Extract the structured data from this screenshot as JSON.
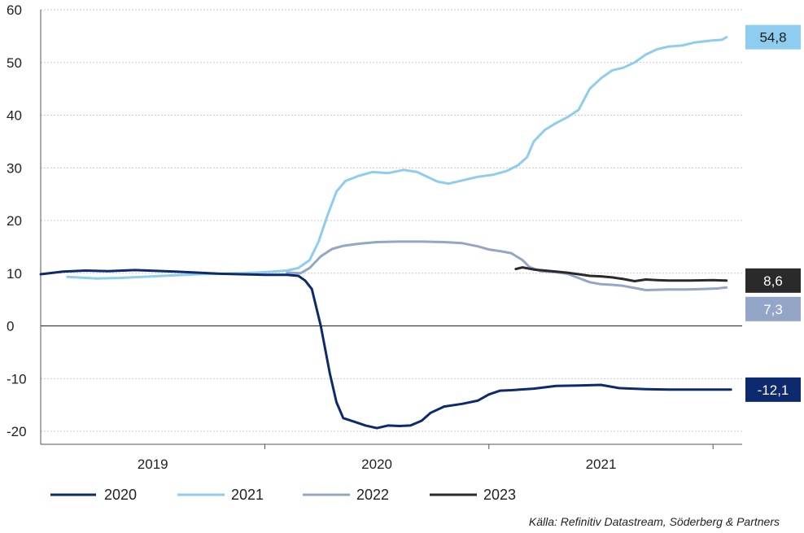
{
  "chart_data": {
    "type": "line",
    "title": "",
    "xlabel": "",
    "ylabel": "",
    "ylim": [
      -20,
      60
    ],
    "yticks": [
      60,
      50,
      40,
      30,
      20,
      10,
      0,
      -10,
      -20
    ],
    "ytick_labels": [
      "60",
      "50",
      "40",
      "30",
      "20",
      "10",
      "0",
      "-10",
      "-20"
    ],
    "xlim": [
      2019.0,
      2022.13
    ],
    "x_categories": [
      "2019",
      "2020",
      "2021"
    ],
    "grid": true,
    "legend_position": "bottom",
    "series": [
      {
        "name": "2020",
        "color": "#0d2a6e",
        "end_label": "-12,1",
        "points": [
          [
            2019.0,
            9.8
          ],
          [
            2019.1,
            10.3
          ],
          [
            2019.2,
            10.5
          ],
          [
            2019.3,
            10.4
          ],
          [
            2019.42,
            10.6
          ],
          [
            2019.6,
            10.3
          ],
          [
            2019.8,
            9.9
          ],
          [
            2020.0,
            9.7
          ],
          [
            2020.1,
            9.7
          ],
          [
            2020.15,
            9.5
          ],
          [
            2020.18,
            8.6
          ],
          [
            2020.21,
            7.0
          ],
          [
            2020.25,
            0.0
          ],
          [
            2020.29,
            -9.0
          ],
          [
            2020.32,
            -14.5
          ],
          [
            2020.35,
            -17.5
          ],
          [
            2020.4,
            -18.2
          ],
          [
            2020.45,
            -18.9
          ],
          [
            2020.5,
            -19.4
          ],
          [
            2020.55,
            -18.9
          ],
          [
            2020.6,
            -19.0
          ],
          [
            2020.65,
            -18.9
          ],
          [
            2020.7,
            -18.0
          ],
          [
            2020.74,
            -16.5
          ],
          [
            2020.8,
            -15.3
          ],
          [
            2020.88,
            -14.8
          ],
          [
            2020.95,
            -14.2
          ],
          [
            2021.0,
            -13.0
          ],
          [
            2021.05,
            -12.3
          ],
          [
            2021.1,
            -12.2
          ],
          [
            2021.2,
            -11.9
          ],
          [
            2021.3,
            -11.4
          ],
          [
            2021.4,
            -11.3
          ],
          [
            2021.5,
            -11.2
          ],
          [
            2021.58,
            -11.8
          ],
          [
            2021.7,
            -12.0
          ],
          [
            2021.8,
            -12.1
          ],
          [
            2021.9,
            -12.1
          ],
          [
            2022.08,
            -12.1
          ]
        ]
      },
      {
        "name": "2021",
        "color": "#8ecdf0",
        "end_label": "54,8",
        "points": [
          [
            2019.12,
            9.3
          ],
          [
            2019.25,
            9.0
          ],
          [
            2019.35,
            9.1
          ],
          [
            2019.5,
            9.4
          ],
          [
            2019.7,
            9.8
          ],
          [
            2019.9,
            10.0
          ],
          [
            2020.0,
            10.2
          ],
          [
            2020.1,
            10.5
          ],
          [
            2020.15,
            11.0
          ],
          [
            2020.2,
            12.5
          ],
          [
            2020.24,
            16.0
          ],
          [
            2020.28,
            21.0
          ],
          [
            2020.32,
            25.5
          ],
          [
            2020.36,
            27.5
          ],
          [
            2020.42,
            28.5
          ],
          [
            2020.48,
            29.2
          ],
          [
            2020.55,
            29.0
          ],
          [
            2020.62,
            29.6
          ],
          [
            2020.68,
            29.2
          ],
          [
            2020.72,
            28.4
          ],
          [
            2020.77,
            27.4
          ],
          [
            2020.82,
            27.0
          ],
          [
            2020.88,
            27.6
          ],
          [
            2020.95,
            28.3
          ],
          [
            2021.02,
            28.7
          ],
          [
            2021.08,
            29.4
          ],
          [
            2021.13,
            30.5
          ],
          [
            2021.17,
            32.0
          ],
          [
            2021.2,
            35.0
          ],
          [
            2021.25,
            37.2
          ],
          [
            2021.3,
            38.5
          ],
          [
            2021.35,
            39.6
          ],
          [
            2021.4,
            41.0
          ],
          [
            2021.45,
            45.0
          ],
          [
            2021.5,
            47.0
          ],
          [
            2021.55,
            48.5
          ],
          [
            2021.6,
            49.0
          ],
          [
            2021.65,
            50.0
          ],
          [
            2021.7,
            51.5
          ],
          [
            2021.75,
            52.5
          ],
          [
            2021.8,
            53.0
          ],
          [
            2021.86,
            53.2
          ],
          [
            2021.92,
            53.8
          ],
          [
            2022.0,
            54.2
          ],
          [
            2022.04,
            54.3
          ],
          [
            2022.06,
            54.8
          ]
        ]
      },
      {
        "name": "2022",
        "color": "#94a6c8",
        "end_label": "7,3",
        "points": [
          [
            2020.1,
            10.1
          ],
          [
            2020.16,
            10.0
          ],
          [
            2020.2,
            11.0
          ],
          [
            2020.25,
            13.2
          ],
          [
            2020.3,
            14.6
          ],
          [
            2020.35,
            15.2
          ],
          [
            2020.42,
            15.6
          ],
          [
            2020.5,
            15.9
          ],
          [
            2020.6,
            16.0
          ],
          [
            2020.7,
            16.0
          ],
          [
            2020.8,
            15.9
          ],
          [
            2020.88,
            15.7
          ],
          [
            2020.95,
            15.1
          ],
          [
            2021.0,
            14.5
          ],
          [
            2021.05,
            14.2
          ],
          [
            2021.1,
            13.8
          ],
          [
            2021.15,
            12.5
          ],
          [
            2021.18,
            11.2
          ],
          [
            2021.23,
            10.4
          ],
          [
            2021.3,
            10.2
          ],
          [
            2021.35,
            9.9
          ],
          [
            2021.4,
            9.1
          ],
          [
            2021.45,
            8.3
          ],
          [
            2021.5,
            7.9
          ],
          [
            2021.55,
            7.8
          ],
          [
            2021.6,
            7.6
          ],
          [
            2021.65,
            7.2
          ],
          [
            2021.7,
            6.8
          ],
          [
            2021.8,
            6.9
          ],
          [
            2021.88,
            6.9
          ],
          [
            2021.95,
            7.0
          ],
          [
            2022.02,
            7.1
          ],
          [
            2022.06,
            7.3
          ]
        ]
      },
      {
        "name": "2023",
        "color": "#2a2a2a",
        "end_label": "8,6",
        "points": [
          [
            2021.12,
            10.8
          ],
          [
            2021.15,
            11.1
          ],
          [
            2021.2,
            10.7
          ],
          [
            2021.25,
            10.5
          ],
          [
            2021.3,
            10.3
          ],
          [
            2021.35,
            10.1
          ],
          [
            2021.4,
            9.8
          ],
          [
            2021.45,
            9.5
          ],
          [
            2021.5,
            9.4
          ],
          [
            2021.55,
            9.2
          ],
          [
            2021.6,
            8.9
          ],
          [
            2021.65,
            8.5
          ],
          [
            2021.7,
            8.8
          ],
          [
            2021.75,
            8.7
          ],
          [
            2021.8,
            8.6
          ],
          [
            2021.9,
            8.6
          ],
          [
            2022.0,
            8.7
          ],
          [
            2022.06,
            8.6
          ]
        ]
      }
    ]
  },
  "colors": {
    "label_2020_bg": "#0d2a6e",
    "label_2021_bg": "#8ecdf0",
    "label_2022_bg": "#94a6c8",
    "label_2023_bg": "#2a2a2a"
  },
  "source": "Källa: Refinitiv Datastream, Söderberg & Partners"
}
